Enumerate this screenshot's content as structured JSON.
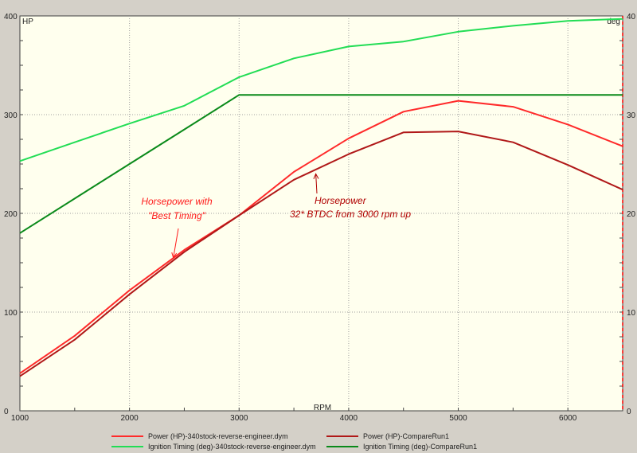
{
  "colors": {
    "background": "#ffffee",
    "frame": "#d4d0c8",
    "grid": "#a0a0a0",
    "power_best": "#ff2a2a",
    "power_compare": "#b01818",
    "timing_best": "#22dd55",
    "timing_compare": "#0a8a1a",
    "annotation_best": "#ff1a1a",
    "annotation_compare": "#b00000"
  },
  "chart_data": {
    "type": "line",
    "x_label": "RPM",
    "y_left_label": "HP",
    "y_right_label": "deg",
    "xlim": [
      1000,
      6500
    ],
    "ylim_left": [
      0,
      400
    ],
    "ylim_right": [
      0,
      40
    ],
    "x_ticks": [
      1000,
      2000,
      3000,
      4000,
      5000,
      6000
    ],
    "y_left_ticks": [
      0,
      100,
      200,
      300,
      400
    ],
    "y_right_ticks": [
      0,
      10,
      20,
      30,
      40
    ],
    "grid": true,
    "series": [
      {
        "name": "Power (HP)-340stock-reverse-engineer.dym",
        "axis": "left",
        "color_key": "power_best",
        "x": [
          1000,
          1500,
          2000,
          2500,
          3000,
          3500,
          4000,
          4500,
          5000,
          5500,
          6000,
          6500
        ],
        "y": [
          38,
          76,
          122,
          163,
          198,
          242,
          276,
          303,
          314,
          308,
          290,
          268
        ]
      },
      {
        "name": "Power (HP)-CompareRun1",
        "axis": "left",
        "color_key": "power_compare",
        "x": [
          1000,
          1500,
          2000,
          2500,
          3000,
          3500,
          4000,
          4500,
          5000,
          5500,
          6000,
          6500
        ],
        "y": [
          35,
          72,
          118,
          161,
          198,
          234,
          260,
          282,
          283,
          272,
          249,
          224
        ]
      },
      {
        "name": "Ignition Timing (deg)-340stock-reverse-engineer.dym",
        "axis": "right",
        "color_key": "timing_best",
        "x": [
          1000,
          1500,
          2000,
          2500,
          3000,
          3500,
          4000,
          4500,
          5000,
          5500,
          6000,
          6500
        ],
        "y": [
          25.3,
          27.2,
          29.1,
          30.9,
          33.8,
          35.7,
          36.9,
          37.4,
          38.4,
          39.0,
          39.5,
          39.7
        ]
      },
      {
        "name": "Ignition Timing (deg)-CompareRun1",
        "axis": "right",
        "color_key": "timing_compare",
        "x": [
          1000,
          1500,
          2000,
          2500,
          3000,
          3500,
          4000,
          4500,
          5000,
          5500,
          6000,
          6500
        ],
        "y": [
          18.0,
          21.5,
          25.0,
          28.5,
          32.0,
          32.0,
          32.0,
          32.0,
          32.0,
          32.0,
          32.0,
          32.0
        ]
      }
    ],
    "annotations": [
      {
        "lines": [
          "Horsepower with",
          "\"Best Timing\""
        ],
        "color_key": "annotation_best",
        "target": {
          "x": 2400,
          "y": 155
        }
      },
      {
        "lines": [
          "Horsepower",
          "32* BTDC from 3000 rpm up"
        ],
        "color_key": "annotation_compare",
        "target": {
          "x": 3700,
          "y": 240
        }
      }
    ]
  },
  "legend": {
    "items": [
      {
        "label": "Power (HP)-340stock-reverse-engineer.dym",
        "color_key": "power_best"
      },
      {
        "label": "Power (HP)-CompareRun1",
        "color_key": "power_compare"
      },
      {
        "label": "Ignition Timing (deg)-340stock-reverse-engineer.dym",
        "color_key": "timing_best"
      },
      {
        "label": "Ignition Timing (deg)-CompareRun1",
        "color_key": "timing_compare"
      }
    ]
  }
}
